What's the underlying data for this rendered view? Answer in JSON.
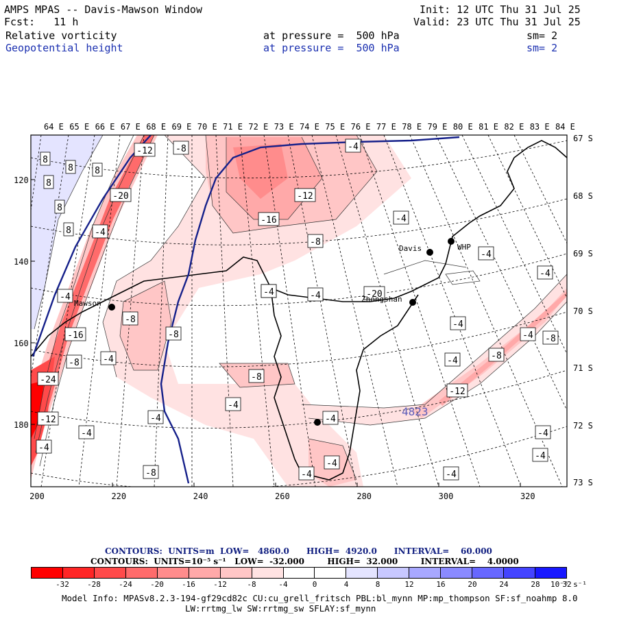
{
  "header": {
    "title": "AMPS MPAS -- Davis-Mawson Window",
    "fcst": "Fcst:   11 h",
    "init": "Init: 12 UTC Thu 31 Jul 25",
    "valid": "Valid: 23 UTC Thu 31 Jul 25",
    "field1_name": "Relative vorticity",
    "field1_level": "at pressure =  500 hPa",
    "field1_sm": "sm= 2",
    "field2_name": "Geopotential height",
    "field2_level": "at pressure =  500 hPa",
    "field2_sm": "sm= 2"
  },
  "map": {
    "top_lon_labels": [
      "64 E",
      "65 E",
      "66 E",
      "67 E",
      "68 E",
      "69 E",
      "70 E",
      "71 E",
      "72 E",
      "73 E",
      "74 E",
      "75 E",
      "76 E",
      "77 E",
      "78 E",
      "79 E",
      "80 E",
      "81 E",
      "82 E",
      "83 E",
      "84 E"
    ],
    "right_lat_labels": [
      "67 S",
      "68 S",
      "69 S",
      "70 S",
      "71 S",
      "72 S",
      "73 S"
    ],
    "x_ticks": [
      "200",
      "220",
      "240",
      "260",
      "280",
      "300",
      "320"
    ],
    "y_ticks": [
      "120",
      "140",
      "160",
      "180"
    ],
    "stations": [
      {
        "name": "Davis"
      },
      {
        "name": "WHP"
      },
      {
        "name": "Zhongshan"
      },
      {
        "name": "Mawson"
      },
      {
        "name": ""
      }
    ],
    "height_label": "4823",
    "contour_labels": [
      "8",
      "8",
      "8",
      "8",
      "8",
      "8",
      "-12",
      "-8",
      "-4",
      "-20",
      "-4",
      "-12",
      "-16",
      "-8",
      "-4",
      "-4",
      "-4",
      "-4",
      "-4",
      "-20",
      "-4",
      "-8",
      "-8",
      "-16",
      "-8",
      "-4",
      "-24",
      "-12",
      "-4",
      "-8",
      "-4",
      "-4",
      "-4",
      "-4",
      "-4",
      "-8",
      "-12",
      "-4",
      "-8",
      "-4",
      "-4",
      "-4",
      "-4",
      "-8",
      "-4",
      "-4",
      "-4"
    ]
  },
  "colorbar": {
    "contours_line1": "CONTOURS:  UNITS=m  LOW=   4860.0      HIGH=  4920.0      INTERVAL=    60.000",
    "contours_line2": "CONTOURS:  UNITS=10⁻⁵ s⁻¹   LOW=  -32.000        HIGH=  32.000        INTERVAL=    4.0000",
    "tick_labels": [
      "-32",
      "-28",
      "-24",
      "-20",
      "-16",
      "-12",
      "-8",
      "-4",
      "0",
      "4",
      "8",
      "12",
      "16",
      "20",
      "24",
      "28",
      "32"
    ],
    "units_label": "10⁻⁵ s⁻¹",
    "colors": [
      "#ff0000",
      "#ff2525",
      "#ff4a4a",
      "#ff6b6b",
      "#ff8c8c",
      "#ffa9a9",
      "#ffc6c6",
      "#ffe2e2",
      "#ffffff",
      "#ffffff",
      "#e4e4ff",
      "#c8c8ff",
      "#a8a8ff",
      "#8a8aff",
      "#6767ff",
      "#4444ff",
      "#1818ff"
    ]
  },
  "model_info_line1": "Model Info: MPASv8.2.3-194-gf29cd82c CU:cu_grell_fritsch PBL:bl_mynn MP:mp_thompson SF:sf_noahmp 8.0",
  "model_info_line2": "LW:rrtmg_lw SW:rrtmg_sw SFLAY:sf_mynn"
}
